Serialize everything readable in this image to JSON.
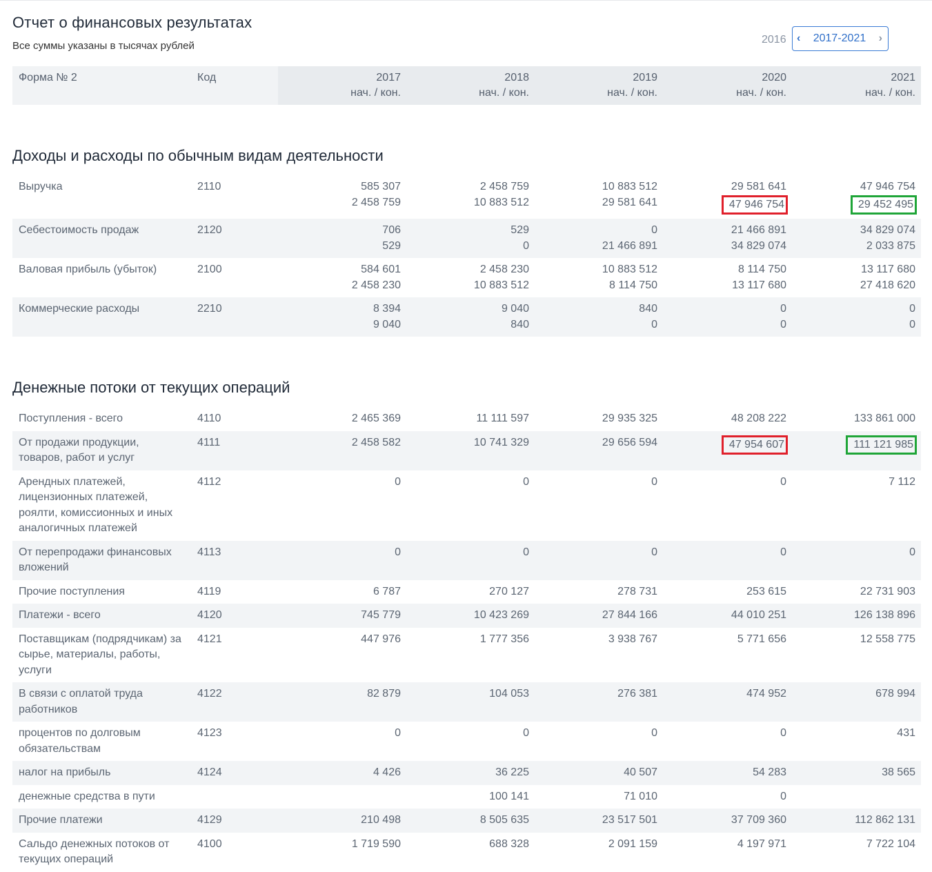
{
  "page": {
    "title": "Отчет о финансовых результатах",
    "subtitle": "Все суммы указаны в тысячах рублей",
    "prev_year": "2016",
    "range_label": "2017-2021"
  },
  "table_header": {
    "form": "Форма № 2",
    "code": "Код",
    "years": [
      "2017",
      "2018",
      "2019",
      "2020",
      "2021"
    ],
    "sub": "нач. / кон."
  },
  "section1": {
    "title": "Доходы и расходы по обычным видам деятельности",
    "rows": [
      {
        "label": "Выручка",
        "code": "2110",
        "values": [
          [
            "585 307",
            "2 458 759"
          ],
          [
            "2 458 759",
            "10 883 512"
          ],
          [
            "10 883 512",
            "29 581 641"
          ],
          [
            "29 581 641",
            "47 946 754"
          ],
          [
            "47 946 754",
            "29 452 495"
          ]
        ]
      },
      {
        "label": "Себестоимость продаж",
        "code": "2120",
        "values": [
          [
            "706",
            "529"
          ],
          [
            "529",
            "0"
          ],
          [
            "0",
            "21 466 891"
          ],
          [
            "21 466 891",
            "34 829 074"
          ],
          [
            "34 829 074",
            "2 033 875"
          ]
        ]
      },
      {
        "label": "Валовая прибыль (убыток)",
        "code": "2100",
        "values": [
          [
            "584 601",
            "2 458 230"
          ],
          [
            "2 458 230",
            "10 883 512"
          ],
          [
            "10 883 512",
            "8 114 750"
          ],
          [
            "8 114 750",
            "13 117 680"
          ],
          [
            "13 117 680",
            "27 418 620"
          ]
        ]
      },
      {
        "label": "Коммерческие расходы",
        "code": "2210",
        "values": [
          [
            "8 394",
            "9 040"
          ],
          [
            "9 040",
            "840"
          ],
          [
            "840",
            "0"
          ],
          [
            "0",
            "0"
          ],
          [
            "0",
            "0"
          ]
        ]
      }
    ]
  },
  "section2": {
    "title": "Денежные потоки от текущих операций",
    "rows": [
      {
        "label": "Поступления - всего",
        "code": "4110",
        "values": [
          "2 465 369",
          "11 111 597",
          "29 935 325",
          "48 208 222",
          "133 861 000"
        ]
      },
      {
        "label": "От продажи продукции, товаров, работ и услуг",
        "code": "4111",
        "values": [
          "2 458 582",
          "10 741 329",
          "29 656 594",
          "47 954 607",
          "111 121 985"
        ]
      },
      {
        "label": "Арендных платежей, лицензионных платежей, роялти, комиссионных и иных аналогичных платежей",
        "code": "4112",
        "values": [
          "0",
          "0",
          "0",
          "0",
          "7 112"
        ]
      },
      {
        "label": "От перепродажи финансовых вложений",
        "code": "4113",
        "values": [
          "0",
          "0",
          "0",
          "0",
          "0"
        ]
      },
      {
        "label": "Прочие поступления",
        "code": "4119",
        "values": [
          "6 787",
          "270 127",
          "278 731",
          "253 615",
          "22 731 903"
        ]
      },
      {
        "label": "Платежи - всего",
        "code": "4120",
        "values": [
          "745 779",
          "10 423 269",
          "27 844 166",
          "44 010 251",
          "126 138 896"
        ]
      },
      {
        "label": "Поставщикам (подрядчикам) за сырье, материалы, работы, услуги",
        "code": "4121",
        "values": [
          "447 976",
          "1 777 356",
          "3 938 767",
          "5 771 656",
          "12 558 775"
        ]
      },
      {
        "label": "В связи с оплатой труда работников",
        "code": "4122",
        "values": [
          "82 879",
          "104 053",
          "276 381",
          "474 952",
          "678 994"
        ]
      },
      {
        "label": "процентов по долговым обязательствам",
        "code": "4123",
        "values": [
          "0",
          "0",
          "0",
          "0",
          "431"
        ]
      },
      {
        "label": "налог на прибыль",
        "code": "4124",
        "values": [
          "4 426",
          "36 225",
          "40 507",
          "54 283",
          "38 565"
        ]
      },
      {
        "label": "денежные средства в пути",
        "code": "",
        "values": [
          "",
          "100 141",
          "71 010",
          "0",
          ""
        ]
      },
      {
        "label": "Прочие платежи",
        "code": "4129",
        "values": [
          "210 498",
          "8 505 635",
          "23 517 501",
          "37 709 360",
          "112 862 131"
        ]
      },
      {
        "label": "Сальдо денежных потоков от текущих операций",
        "code": "4100",
        "values": [
          "1 719 590",
          "688 328",
          "2 091 159",
          "4 197 971",
          "7 722 104"
        ]
      }
    ]
  },
  "highlight_colors": {
    "red": "#e0202b",
    "green": "#1fa538"
  },
  "icons": {
    "prev": "chevron-left-icon",
    "next": "chevron-right-icon"
  }
}
